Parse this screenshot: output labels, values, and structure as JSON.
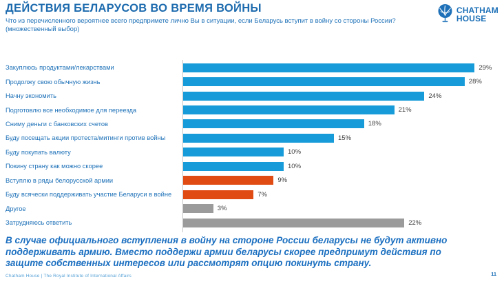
{
  "header": {
    "title": "ДЕЙСТВИЯ БЕЛАРУСОВ ВО ВРЕМЯ ВОЙНЫ",
    "subtitle_line1": "Что из перечисленного вероятнее всего предпримете лично Вы в ситуации, если Беларусь вступит в войну со стороны России?",
    "subtitle_line2": "(множественный выбор)"
  },
  "logo": {
    "line1": "CHATHAM",
    "line2": "HOUSE",
    "icon": "globe-tree-icon",
    "brand_color": "#1E71B8"
  },
  "chart_data": {
    "type": "bar",
    "orientation": "horizontal",
    "title": "ДЕЙСТВИЯ БЕЛАРУСОВ ВО ВРЕМЯ ВОЙНЫ",
    "subtitle": "Что из перечисленного вероятнее всего предпримете лично Вы в ситуации, если Беларусь вступит в войну со стороны России? (множественный выбор)",
    "value_suffix": "%",
    "xlim": [
      0,
      30
    ],
    "grid": false,
    "legend": "none",
    "bar_colors": {
      "blue": "#189CD9",
      "orange": "#E04B14",
      "gray": "#9B9B9B"
    },
    "items": [
      {
        "label": "Закуплюсь продуктами/лекарствами",
        "value": 29,
        "display": "29%",
        "color": "#189CD9"
      },
      {
        "label": "Продолжу свою обычную жизнь",
        "value": 28,
        "display": "28%",
        "color": "#189CD9"
      },
      {
        "label": "Начну экономить",
        "value": 24,
        "display": "24%",
        "color": "#189CD9"
      },
      {
        "label": "Подготовлю все необходимое для переезда",
        "value": 21,
        "display": "21%",
        "color": "#189CD9"
      },
      {
        "label": "Сниму деньги с банковских счетов",
        "value": 18,
        "display": "18%",
        "color": "#189CD9"
      },
      {
        "label": "Буду посещать акции протеста/митинги против войны",
        "value": 15,
        "display": "15%",
        "color": "#189CD9"
      },
      {
        "label": "Буду покупать валюту",
        "value": 10,
        "display": "10%",
        "color": "#189CD9"
      },
      {
        "label": "Покину страну как можно скорее",
        "value": 10,
        "display": "10%",
        "color": "#189CD9"
      },
      {
        "label": "Вступлю в ряды белорусской армии",
        "value": 9,
        "display": "9%",
        "color": "#E04B14"
      },
      {
        "label": "Буду всячески поддерживать участие Беларуси в войне",
        "value": 7,
        "display": "7%",
        "color": "#E04B14"
      },
      {
        "label": "Другое",
        "value": 3,
        "display": "3%",
        "color": "#9B9B9B"
      },
      {
        "label": "Затрудняюсь ответить",
        "value": 22,
        "display": "22%",
        "color": "#9B9B9B"
      }
    ]
  },
  "takeaway": {
    "lines": [
      "В случае официального вступления в войну на стороне России беларусы не будут активно",
      "поддерживать армию. Вместо поддержи армии беларусы скорее предпримут действия по",
      "защите собственных интересов или рассмотрят опцию покинуть страну."
    ]
  },
  "footer": {
    "attribution": "Chatham House | The Royal Institute of International Affairs",
    "page_number": "11"
  }
}
